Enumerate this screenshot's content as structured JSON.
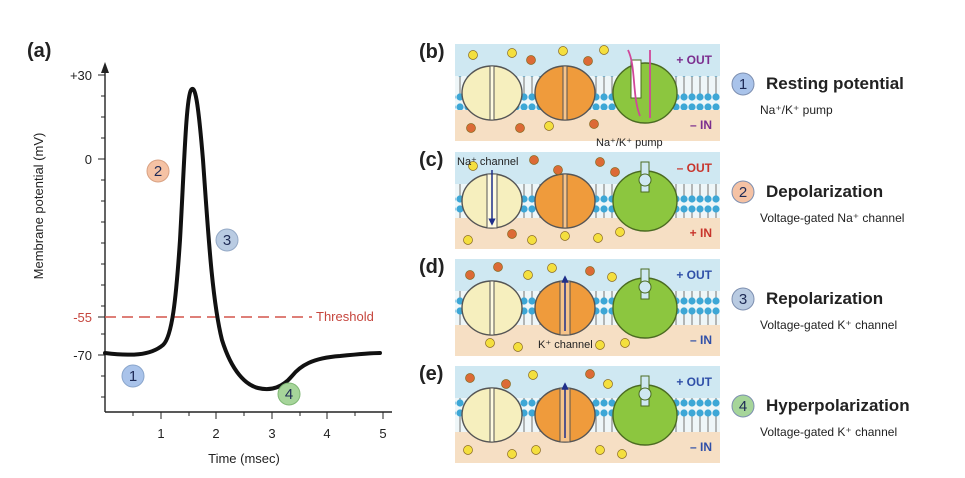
{
  "graph": {
    "panel_label": "(a)",
    "ylabel": "Membrane potential (mV)",
    "xlabel": "Time (msec)",
    "y_ticks": [
      "+30",
      "0",
      "-55",
      "-70"
    ],
    "x_ticks": [
      "1",
      "2",
      "3",
      "4",
      "5"
    ],
    "threshold_label": "Threshold",
    "markers": [
      "1",
      "2",
      "3",
      "4"
    ]
  },
  "colors": {
    "badge1": "#a9c3ea",
    "badge2": "#f5c2a4",
    "badge3": "#b9cbe2",
    "badge4": "#a6d59a",
    "threshold": "#d3554c",
    "out_blue": "#2f4fa8",
    "out_purple": "#7b2d8e",
    "out_red": "#c8342b"
  },
  "panels": [
    {
      "label": "(b)",
      "out_label": "+ OUT",
      "in_label": "– IN",
      "channel_label": "Na⁺/K⁺ pump",
      "badge": "1",
      "title": "Resting potential",
      "subtitle": "Na⁺/K⁺ pump"
    },
    {
      "label": "(c)",
      "out_label": "– OUT",
      "in_label": "+ IN",
      "channel_label": "Na⁺ channel",
      "badge": "2",
      "title": "Depolarization",
      "subtitle": "Voltage-gated Na⁺ channel"
    },
    {
      "label": "(d)",
      "out_label": "+ OUT",
      "in_label": "– IN",
      "channel_label": "K⁺ channel",
      "badge": "3",
      "title": "Repolarization",
      "subtitle": "Voltage-gated K⁺ channel"
    },
    {
      "label": "(e)",
      "out_label": "+ OUT",
      "in_label": "– IN",
      "channel_label": "",
      "badge": "4",
      "title": "Hyperpolarization",
      "subtitle": "Voltage-gated K⁺ channel"
    }
  ]
}
